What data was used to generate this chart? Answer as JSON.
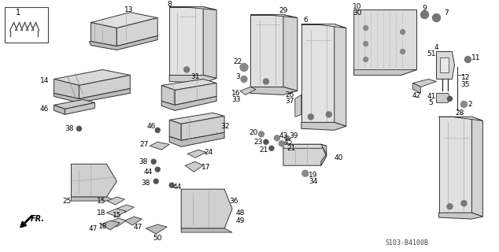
{
  "background_color": "#ffffff",
  "part_number_label": "S103-B4100B",
  "fig_width": 6.34,
  "fig_height": 3.2,
  "dpi": 100,
  "gray_fill": "#d8d8d8",
  "gray_dark": "#aaaaaa",
  "gray_mid": "#c8c8c8",
  "edge_color": "#333333",
  "hatch_color": "#999999"
}
